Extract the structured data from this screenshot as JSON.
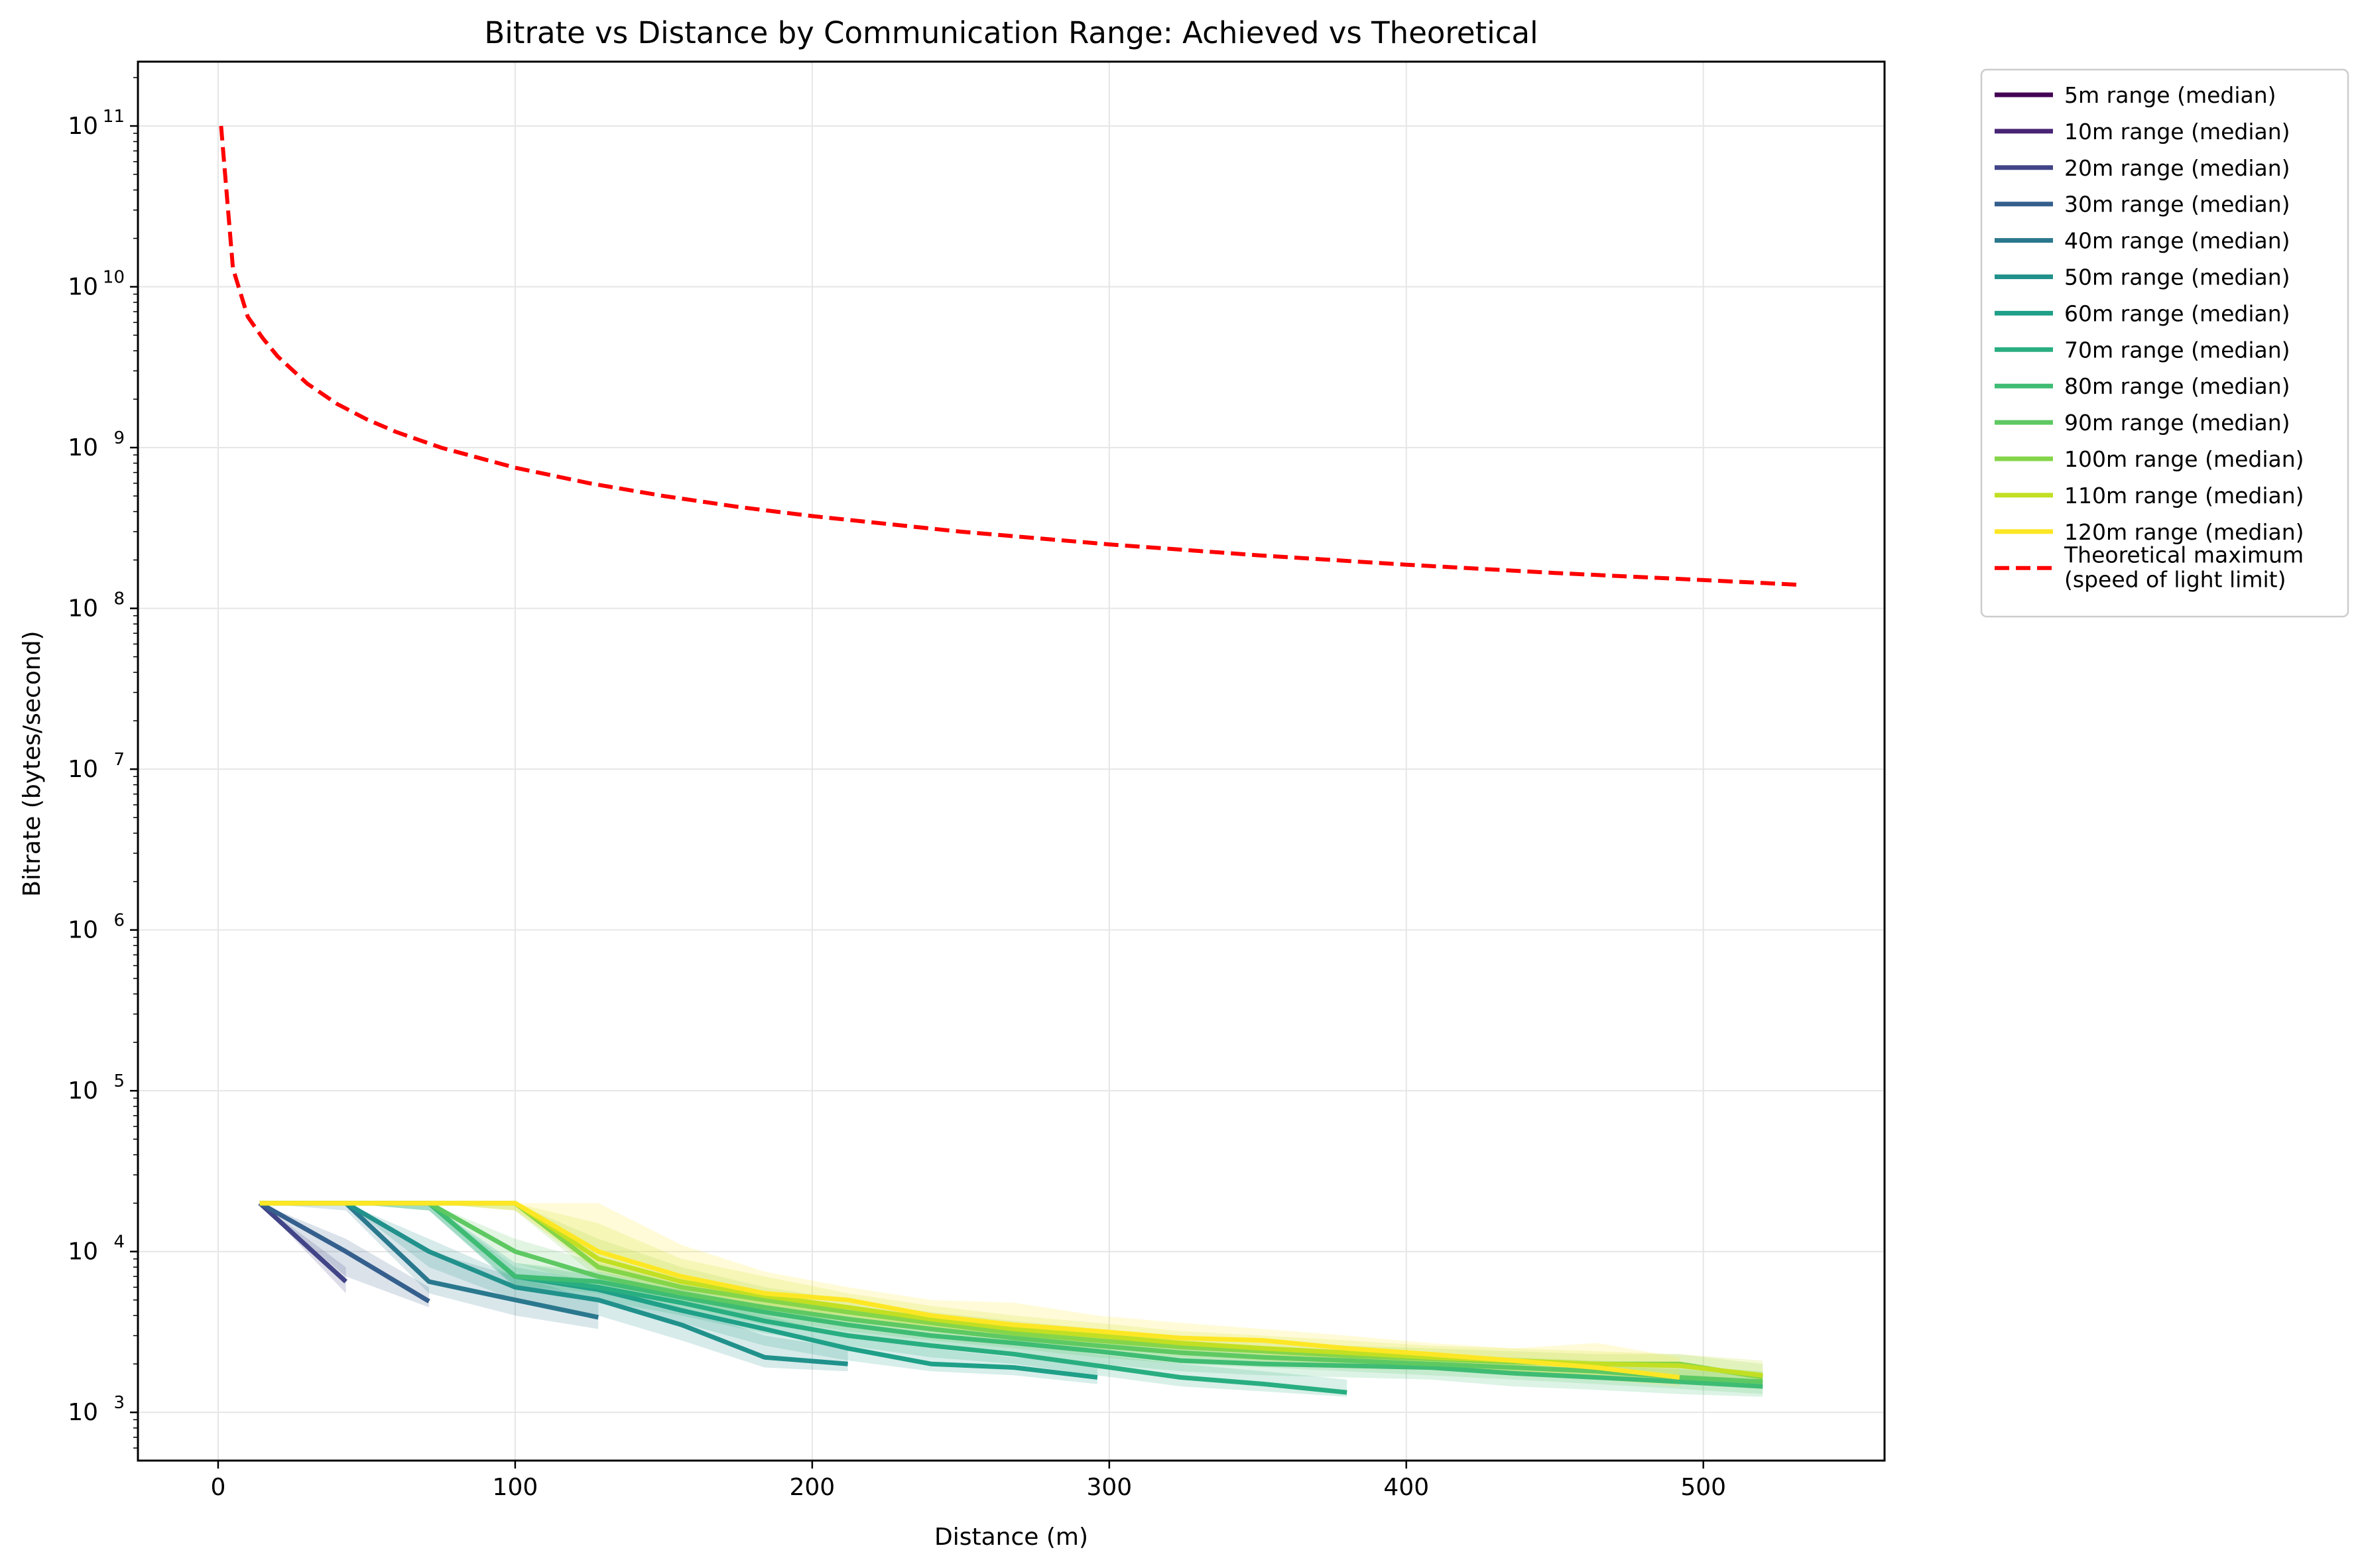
{
  "chart_data": {
    "type": "line",
    "title": "Bitrate vs Distance by Communication Range: Achieved vs Theoretical",
    "xlabel": "Distance (m)",
    "ylabel": "Bitrate (bytes/second)",
    "xlim": [
      -27,
      561
    ],
    "ylim_log10": [
      2.7,
      11.4
    ],
    "yscale": "log",
    "grid": true,
    "legend_position": "outside-right-top",
    "x_ticks": [
      0,
      100,
      200,
      300,
      400,
      500
    ],
    "y_ticks": [
      {
        "base": "10",
        "exp": "3",
        "value_log10": 3
      },
      {
        "base": "10",
        "exp": "4",
        "value_log10": 4
      },
      {
        "base": "10",
        "exp": "5",
        "value_log10": 5
      },
      {
        "base": "10",
        "exp": "6",
        "value_log10": 6
      },
      {
        "base": "10",
        "exp": "7",
        "value_log10": 7
      },
      {
        "base": "10",
        "exp": "8",
        "value_log10": 8
      },
      {
        "base": "10",
        "exp": "9",
        "value_log10": 9
      },
      {
        "base": "10",
        "exp": "10",
        "value_log10": 10
      },
      {
        "base": "10",
        "exp": "11",
        "value_log10": 11
      }
    ],
    "series": [
      {
        "name": "5m range (median)",
        "color": "#440154",
        "x": [],
        "y": [],
        "band_low": [],
        "band_high": []
      },
      {
        "name": "10m range (median)",
        "color": "#482475",
        "x": [],
        "y": [],
        "band_low": [],
        "band_high": []
      },
      {
        "name": "20m range (median)",
        "color": "#414487",
        "x": [
          14,
          43
        ],
        "y": [
          20000,
          6500
        ],
        "band_low": [
          20000,
          5500
        ],
        "band_high": [
          20000,
          8000
        ]
      },
      {
        "name": "30m range (median)",
        "color": "#355f8d",
        "x": [
          14,
          43,
          71
        ],
        "y": [
          20000,
          10000,
          4900
        ],
        "band_low": [
          20000,
          7000,
          4500
        ],
        "band_high": [
          20000,
          12000,
          6000
        ]
      },
      {
        "name": "40m range (median)",
        "color": "#2a788e",
        "x": [
          14,
          43,
          71,
          100,
          128
        ],
        "y": [
          20000,
          20000,
          6500,
          5000,
          3900
        ],
        "band_low": [
          20000,
          18000,
          5500,
          4000,
          3300
        ],
        "band_high": [
          20000,
          20000,
          10000,
          7000,
          5000
        ]
      },
      {
        "name": "50m range (median)",
        "color": "#21918c",
        "x": [
          14,
          43,
          71,
          100,
          128,
          156,
          184,
          212
        ],
        "y": [
          20000,
          20000,
          10000,
          6000,
          5000,
          3500,
          2200,
          2000
        ],
        "band_low": [
          20000,
          20000,
          8000,
          5000,
          4000,
          2800,
          1900,
          1800
        ],
        "band_high": [
          20000,
          20000,
          12000,
          7000,
          6000,
          4500,
          3000,
          2500
        ]
      },
      {
        "name": "60m range (median)",
        "color": "#1fa088",
        "x": [
          14,
          43,
          71,
          100,
          128,
          156,
          184,
          212,
          240,
          268,
          296
        ],
        "y": [
          20000,
          20000,
          20000,
          7000,
          5800,
          4300,
          3300,
          2500,
          2000,
          1900,
          1650
        ],
        "band_low": [
          20000,
          20000,
          18000,
          6000,
          4800,
          3600,
          2600,
          2100,
          1800,
          1700,
          1500
        ],
        "band_high": [
          20000,
          20000,
          20000,
          8000,
          6500,
          5200,
          4000,
          3000,
          2500,
          2200,
          2000
        ]
      },
      {
        "name": "70m range (median)",
        "color": "#28ae80",
        "x": [
          14,
          43,
          71,
          100,
          128,
          156,
          184,
          212,
          240,
          268,
          296,
          324,
          352,
          380
        ],
        "y": [
          20000,
          20000,
          20000,
          7000,
          6000,
          4800,
          3700,
          3000,
          2600,
          2300,
          1950,
          1650,
          1500,
          1330
        ],
        "band_low": [
          20000,
          20000,
          18000,
          6000,
          5000,
          4000,
          3100,
          2600,
          2200,
          2000,
          1700,
          1450,
          1350,
          1250
        ],
        "band_high": [
          20000,
          20000,
          20000,
          8500,
          7000,
          5800,
          4500,
          3600,
          3000,
          2700,
          2300,
          2000,
          1800,
          1600
        ]
      },
      {
        "name": "80m range (median)",
        "color": "#3fbc73",
        "x": [
          14,
          43,
          71,
          100,
          128,
          156,
          184,
          212,
          240,
          268,
          296,
          324,
          352,
          380,
          408,
          436,
          464,
          492,
          520
        ],
        "y": [
          20000,
          20000,
          20000,
          7000,
          6500,
          5200,
          4200,
          3500,
          3000,
          2700,
          2400,
          2100,
          2000,
          1950,
          1900,
          1750,
          1650,
          1550,
          1450
        ],
        "band_low": [
          20000,
          20000,
          18000,
          6200,
          5500,
          4400,
          3500,
          3000,
          2600,
          2300,
          2000,
          1800,
          1700,
          1650,
          1600,
          1450,
          1380,
          1300,
          1250
        ],
        "band_high": [
          20000,
          20000,
          20000,
          8500,
          7500,
          6000,
          5000,
          4000,
          3500,
          3100,
          2800,
          2500,
          2300,
          2250,
          2200,
          2100,
          1950,
          1850,
          1700
        ]
      },
      {
        "name": "90m range (median)",
        "color": "#5ec962",
        "x": [
          14,
          43,
          71,
          100,
          128,
          156,
          184,
          212,
          240,
          268,
          296,
          324,
          352,
          380,
          408,
          436,
          464,
          492,
          520
        ],
        "y": [
          20000,
          20000,
          20000,
          10000,
          7000,
          5500,
          4500,
          3800,
          3300,
          2900,
          2600,
          2350,
          2200,
          2100,
          2000,
          1900,
          1800,
          1650,
          1550
        ],
        "band_low": [
          20000,
          20000,
          20000,
          8500,
          6000,
          4700,
          3800,
          3200,
          2800,
          2500,
          2200,
          2000,
          1900,
          1800,
          1700,
          1600,
          1500,
          1400,
          1300
        ],
        "band_high": [
          20000,
          20000,
          20000,
          12000,
          8500,
          6500,
          5300,
          4400,
          3800,
          3400,
          3000,
          2700,
          2500,
          2400,
          2300,
          2200,
          2100,
          1950,
          1800
        ]
      },
      {
        "name": "100m range (median)",
        "color": "#85d54a",
        "x": [
          14,
          43,
          71,
          100,
          128,
          156,
          184,
          212,
          240,
          268,
          296,
          324,
          352,
          380,
          408,
          436,
          464,
          492,
          520
        ],
        "y": [
          20000,
          20000,
          20000,
          20000,
          8000,
          6000,
          5000,
          4200,
          3600,
          3100,
          2800,
          2550,
          2400,
          2250,
          2150,
          2050,
          2000,
          2000,
          1650
        ],
        "band_low": [
          20000,
          20000,
          20000,
          18000,
          6800,
          5200,
          4300,
          3600,
          3100,
          2700,
          2400,
          2200,
          2050,
          1950,
          1850,
          1700,
          1600,
          1550,
          1400
        ],
        "band_high": [
          20000,
          20000,
          20000,
          20000,
          12000,
          8000,
          6000,
          5000,
          4200,
          3700,
          3300,
          3000,
          2800,
          2600,
          2500,
          2400,
          2300,
          2300,
          2000
        ]
      },
      {
        "name": "110m range (median)",
        "color": "#c2df23",
        "x": [
          14,
          43,
          71,
          100,
          128,
          156,
          184,
          212,
          240,
          268,
          296,
          324,
          352,
          380,
          408,
          436,
          464,
          492,
          520
        ],
        "y": [
          20000,
          20000,
          20000,
          20000,
          9000,
          6500,
          5300,
          4500,
          3800,
          3300,
          3000,
          2700,
          2500,
          2350,
          2200,
          2100,
          2000,
          1950,
          1700
        ],
        "band_low": [
          20000,
          20000,
          20000,
          18000,
          7500,
          5500,
          4500,
          3800,
          3200,
          2800,
          2500,
          2300,
          2100,
          2000,
          1850,
          1750,
          1650,
          1600,
          1450
        ],
        "band_high": [
          20000,
          20000,
          20000,
          20000,
          15000,
          9000,
          7000,
          5500,
          4600,
          4000,
          3600,
          3200,
          3000,
          2800,
          2600,
          2500,
          2400,
          2300,
          2100
        ]
      },
      {
        "name": "120m range (median)",
        "color": "#fde725",
        "x": [
          14,
          43,
          71,
          100,
          128,
          156,
          184,
          212,
          240,
          268,
          296,
          324,
          352,
          380,
          408,
          436,
          464,
          492
        ],
        "y": [
          20000,
          20000,
          20000,
          20000,
          10000,
          7000,
          5500,
          5000,
          4000,
          3500,
          3200,
          2900,
          2800,
          2500,
          2300,
          2100,
          1900,
          1650
        ],
        "band_low": [
          20000,
          20000,
          20000,
          18000,
          8000,
          6000,
          4500,
          4000,
          3300,
          2900,
          2700,
          2500,
          2300,
          2100,
          1900,
          1800,
          1600,
          1450
        ],
        "band_high": [
          20000,
          20000,
          20000,
          20000,
          20000,
          11000,
          7500,
          6000,
          5000,
          4800,
          4000,
          3600,
          3300,
          3000,
          2700,
          2500,
          2700,
          2200
        ]
      },
      {
        "name": "Theoretical maximum\n(speed of light limit)",
        "color": "#ff0000",
        "style": "dashed",
        "x": [
          1,
          5,
          10,
          15,
          20,
          30,
          40,
          50,
          60,
          75,
          100,
          125,
          150,
          175,
          200,
          250,
          300,
          350,
          400,
          450,
          500,
          533
        ],
        "y": [
          100000000000,
          13000000000,
          6500000000,
          4800000000,
          3700000000,
          2500000000,
          1870000000,
          1500000000,
          1250000000,
          1000000000,
          750000000,
          600000000,
          500000000,
          428000000,
          375000000,
          300000000,
          250000000,
          214000000,
          187000000,
          166000000,
          150000000,
          140000000
        ]
      }
    ]
  }
}
